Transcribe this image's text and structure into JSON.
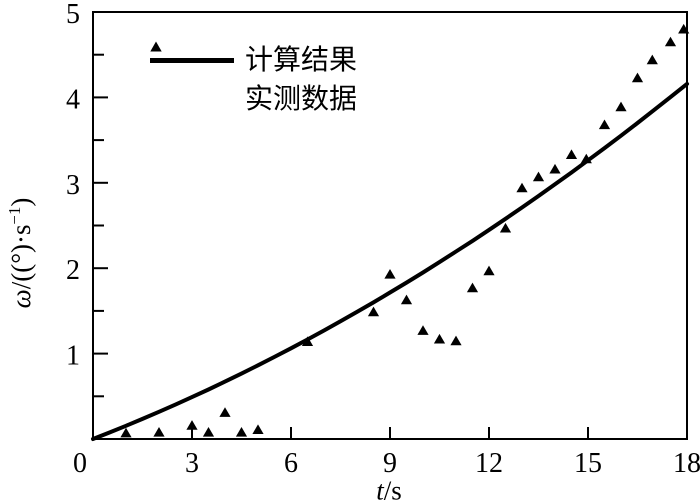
{
  "figure": {
    "background": "#ffffff",
    "ink": "#000000"
  },
  "labels": {
    "x_var": "t",
    "x_rest": "/s",
    "y_omega": "ω",
    "y_mid": "/((°)·s",
    "y_sup": "−1",
    "y_close": ")"
  },
  "chart_data": {
    "type": "line",
    "title": "",
    "xlabel": "t/s",
    "ylabel": "ω/((°)·s⁻¹)",
    "xlim": [
      0,
      18
    ],
    "ylim": [
      0,
      5
    ],
    "x_ticks": [
      0,
      3,
      6,
      9,
      12,
      15,
      18
    ],
    "y_ticks": [
      1,
      2,
      3,
      4,
      5
    ],
    "y_minor_ticks": [
      0.5,
      1.5,
      2.5,
      3.5,
      4.5
    ],
    "grid": false,
    "legend_position": "upper-left-inside",
    "series": [
      {
        "name": "计算结果",
        "type": "line",
        "x": [
          0,
          0.5,
          1,
          1.5,
          2,
          2.5,
          3,
          3.5,
          4,
          4.5,
          5,
          5.5,
          6,
          6.5,
          7,
          7.5,
          8,
          8.5,
          9,
          9.5,
          10,
          10.5,
          11,
          11.5,
          12,
          12.5,
          13,
          13.5,
          14,
          14.5,
          15,
          15.5,
          16,
          16.5,
          17,
          17.5,
          18
        ],
        "y": [
          0,
          0.076,
          0.155,
          0.235,
          0.318,
          0.403,
          0.491,
          0.58,
          0.672,
          0.766,
          0.863,
          0.961,
          1.062,
          1.165,
          1.271,
          1.378,
          1.488,
          1.6,
          1.715,
          1.831,
          1.95,
          2.071,
          2.195,
          2.32,
          2.448,
          2.578,
          2.711,
          2.845,
          2.982,
          3.121,
          3.263,
          3.406,
          3.552,
          3.7,
          3.851,
          4.003,
          4.158
        ]
      },
      {
        "name": "实测数据",
        "type": "scatter",
        "marker": "filled-triangle-up",
        "points": [
          [
            1,
            0.07
          ],
          [
            2,
            0.08
          ],
          [
            3,
            0.16
          ],
          [
            3.5,
            0.08
          ],
          [
            4,
            0.31
          ],
          [
            4.5,
            0.08
          ],
          [
            5,
            0.11
          ],
          [
            6.5,
            1.14
          ],
          [
            8.5,
            1.49
          ],
          [
            9,
            1.93
          ],
          [
            9.5,
            1.63
          ],
          [
            10,
            1.27
          ],
          [
            10.5,
            1.17
          ],
          [
            11,
            1.15
          ],
          [
            11.5,
            1.77
          ],
          [
            12,
            1.97
          ],
          [
            12.5,
            2.47
          ],
          [
            13,
            2.94
          ],
          [
            13.5,
            3.07
          ],
          [
            14,
            3.16
          ],
          [
            14.5,
            3.33
          ],
          [
            14.95,
            3.28
          ],
          [
            15.5,
            3.68
          ],
          [
            16,
            3.89
          ],
          [
            16.5,
            4.23
          ],
          [
            16.95,
            4.44
          ],
          [
            17.5,
            4.65
          ],
          [
            17.9,
            4.8
          ]
        ]
      }
    ]
  }
}
